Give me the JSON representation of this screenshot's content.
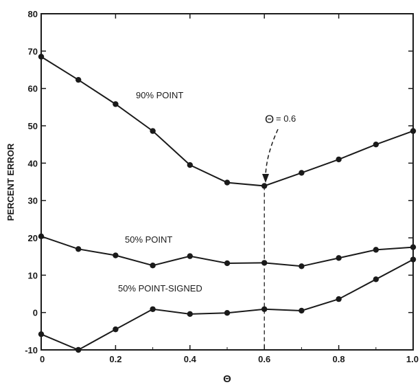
{
  "chart_data": {
    "type": "line",
    "xlabel": "Θ",
    "ylabel": "PERCENT ERROR",
    "xlim": [
      0,
      1.0
    ],
    "ylim": [
      -10,
      80
    ],
    "x_ticks": [
      "0",
      "0.2",
      "0.4",
      "0.6",
      "0.8",
      "1.0"
    ],
    "y_ticks": [
      "-10",
      "0",
      "10",
      "20",
      "30",
      "40",
      "50",
      "60",
      "70",
      "80"
    ],
    "grid": false,
    "x": [
      0,
      0.1,
      0.2,
      0.3,
      0.4,
      0.5,
      0.6,
      0.7,
      0.8,
      0.9,
      1.0
    ],
    "series": [
      {
        "name": "90% POINT",
        "values": [
          68.5,
          62.3,
          55.8,
          48.6,
          39.5,
          34.8,
          33.9,
          37.4,
          41.0,
          45.0,
          48.6
        ]
      },
      {
        "name": "50% POINT",
        "values": [
          20.4,
          17.0,
          15.3,
          12.6,
          15.1,
          13.2,
          13.3,
          12.4,
          14.6,
          16.8,
          17.5
        ]
      },
      {
        "name": "50% POINT-SIGNED",
        "values": [
          -5.8,
          -10.0,
          -4.5,
          0.9,
          -0.4,
          -0.1,
          0.9,
          0.5,
          3.6,
          8.9,
          14.2
        ]
      }
    ],
    "annotation": {
      "label": "= 0.6",
      "symbol": "Θ",
      "x": 0.6
    }
  },
  "colors": {
    "ink": "#1a1a1a"
  }
}
